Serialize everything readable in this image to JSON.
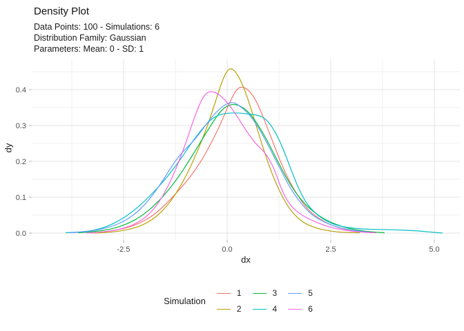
{
  "header": {
    "title": "Density Plot",
    "subtitle_lines": [
      "Data Points: 100 - Simulations: 6",
      "Distribution Family: Gaussian",
      "Parameters: Mean: 0 - SD: 1"
    ]
  },
  "chart_data": {
    "type": "line",
    "title": "Density Plot",
    "subtitle": "Data Points: 100 - Simulations: 6 / Distribution Family: Gaussian / Parameters: Mean: 0 - SD: 1",
    "xlabel": "dx",
    "ylabel": "dy",
    "xlim": [
      -4.7,
      5.6
    ],
    "ylim": [
      -0.019,
      0.485
    ],
    "grid": true,
    "legend_position": "bottom",
    "legend_title": "Simulation",
    "x_ticks": [
      -2.5,
      0.0,
      2.5,
      5.0
    ],
    "x_tick_labels": [
      "-2.5",
      "0.0",
      "2.5",
      "5.0"
    ],
    "y_ticks": [
      0.0,
      0.1,
      0.2,
      0.3,
      0.4
    ],
    "y_tick_labels": [
      "0.0",
      "0.1",
      "0.2",
      "0.3",
      "0.4"
    ],
    "colors": {
      "grid_major": "#e3e3e3",
      "grid_minor": "#efefef",
      "tick_mark": "#b0b0b0",
      "tick_label": "#4d4d4d"
    },
    "series": [
      {
        "name": "1",
        "color": "#F8766D",
        "points": [
          [
            -3.3,
            0.0
          ],
          [
            -3.0,
            0.003
          ],
          [
            -2.7,
            0.008
          ],
          [
            -2.4,
            0.015
          ],
          [
            -2.1,
            0.028
          ],
          [
            -1.8,
            0.048
          ],
          [
            -1.5,
            0.078
          ],
          [
            -1.2,
            0.115
          ],
          [
            -0.9,
            0.155
          ],
          [
            -0.6,
            0.205
          ],
          [
            -0.3,
            0.27
          ],
          [
            -0.1,
            0.32
          ],
          [
            0.1,
            0.375
          ],
          [
            0.25,
            0.405
          ],
          [
            0.4,
            0.408
          ],
          [
            0.55,
            0.395
          ],
          [
            0.7,
            0.37
          ],
          [
            0.9,
            0.315
          ],
          [
            1.1,
            0.255
          ],
          [
            1.3,
            0.195
          ],
          [
            1.5,
            0.145
          ],
          [
            1.7,
            0.105
          ],
          [
            1.9,
            0.072
          ],
          [
            2.1,
            0.05
          ],
          [
            2.4,
            0.028
          ],
          [
            2.7,
            0.014
          ],
          [
            3.0,
            0.007
          ],
          [
            3.3,
            0.003
          ],
          [
            3.5,
            0.001
          ]
        ]
      },
      {
        "name": "2",
        "color": "#B79F00",
        "points": [
          [
            -3.2,
            0.0
          ],
          [
            -2.9,
            0.002
          ],
          [
            -2.6,
            0.005
          ],
          [
            -2.3,
            0.012
          ],
          [
            -2.0,
            0.024
          ],
          [
            -1.7,
            0.046
          ],
          [
            -1.4,
            0.082
          ],
          [
            -1.1,
            0.135
          ],
          [
            -0.8,
            0.205
          ],
          [
            -0.5,
            0.29
          ],
          [
            -0.3,
            0.36
          ],
          [
            -0.1,
            0.432
          ],
          [
            0.05,
            0.462
          ],
          [
            0.2,
            0.452
          ],
          [
            0.35,
            0.42
          ],
          [
            0.5,
            0.375
          ],
          [
            0.7,
            0.3
          ],
          [
            0.9,
            0.225
          ],
          [
            1.1,
            0.16
          ],
          [
            1.3,
            0.108
          ],
          [
            1.5,
            0.068
          ],
          [
            1.7,
            0.042
          ],
          [
            1.9,
            0.025
          ],
          [
            2.2,
            0.012
          ],
          [
            2.5,
            0.005
          ],
          [
            2.8,
            0.002
          ],
          [
            3.2,
            0.001
          ]
        ]
      },
      {
        "name": "3",
        "color": "#00BA38",
        "points": [
          [
            -3.6,
            0.001
          ],
          [
            -3.3,
            0.003
          ],
          [
            -3.0,
            0.007
          ],
          [
            -2.7,
            0.014
          ],
          [
            -2.4,
            0.026
          ],
          [
            -2.1,
            0.045
          ],
          [
            -1.8,
            0.072
          ],
          [
            -1.5,
            0.108
          ],
          [
            -1.2,
            0.152
          ],
          [
            -0.9,
            0.205
          ],
          [
            -0.6,
            0.262
          ],
          [
            -0.3,
            0.318
          ],
          [
            -0.1,
            0.348
          ],
          [
            0.1,
            0.36
          ],
          [
            0.3,
            0.356
          ],
          [
            0.5,
            0.34
          ],
          [
            0.7,
            0.31
          ],
          [
            0.9,
            0.272
          ],
          [
            1.1,
            0.228
          ],
          [
            1.3,
            0.182
          ],
          [
            1.5,
            0.14
          ],
          [
            1.7,
            0.105
          ],
          [
            1.9,
            0.078
          ],
          [
            2.1,
            0.058
          ],
          [
            2.3,
            0.042
          ],
          [
            2.5,
            0.03
          ],
          [
            2.8,
            0.017
          ],
          [
            3.1,
            0.009
          ],
          [
            3.4,
            0.004
          ],
          [
            3.8,
            0.001
          ]
        ]
      },
      {
        "name": "4",
        "color": "#00BFC4",
        "points": [
          [
            -3.9,
            0.001
          ],
          [
            -3.5,
            0.003
          ],
          [
            -3.2,
            0.008
          ],
          [
            -2.9,
            0.018
          ],
          [
            -2.6,
            0.035
          ],
          [
            -2.3,
            0.058
          ],
          [
            -2.0,
            0.088
          ],
          [
            -1.7,
            0.123
          ],
          [
            -1.4,
            0.163
          ],
          [
            -1.1,
            0.21
          ],
          [
            -0.8,
            0.262
          ],
          [
            -0.5,
            0.305
          ],
          [
            -0.3,
            0.325
          ],
          [
            -0.1,
            0.333
          ],
          [
            0.1,
            0.335
          ],
          [
            0.3,
            0.335
          ],
          [
            0.5,
            0.332
          ],
          [
            0.7,
            0.33
          ],
          [
            0.9,
            0.322
          ],
          [
            1.1,
            0.295
          ],
          [
            1.3,
            0.25
          ],
          [
            1.5,
            0.19
          ],
          [
            1.7,
            0.13
          ],
          [
            1.9,
            0.085
          ],
          [
            2.1,
            0.058
          ],
          [
            2.3,
            0.04
          ],
          [
            2.5,
            0.028
          ],
          [
            2.7,
            0.02
          ],
          [
            3.0,
            0.014
          ],
          [
            3.3,
            0.011
          ],
          [
            3.7,
            0.01
          ],
          [
            4.1,
            0.009
          ],
          [
            4.5,
            0.007
          ],
          [
            4.8,
            0.004
          ],
          [
            5.0,
            0.002
          ],
          [
            5.2,
            0.0
          ]
        ]
      },
      {
        "name": "5",
        "color": "#619CFF",
        "points": [
          [
            -3.8,
            0.001
          ],
          [
            -3.4,
            0.004
          ],
          [
            -3.1,
            0.009
          ],
          [
            -2.8,
            0.018
          ],
          [
            -2.5,
            0.032
          ],
          [
            -2.2,
            0.055
          ],
          [
            -1.9,
            0.09
          ],
          [
            -1.6,
            0.138
          ],
          [
            -1.4,
            0.175
          ],
          [
            -1.2,
            0.21
          ],
          [
            -1.0,
            0.235
          ],
          [
            -0.8,
            0.258
          ],
          [
            -0.6,
            0.288
          ],
          [
            -0.4,
            0.32
          ],
          [
            -0.2,
            0.345
          ],
          [
            0.0,
            0.362
          ],
          [
            0.15,
            0.365
          ],
          [
            0.3,
            0.355
          ],
          [
            0.5,
            0.335
          ],
          [
            0.7,
            0.305
          ],
          [
            0.9,
            0.265
          ],
          [
            1.1,
            0.22
          ],
          [
            1.3,
            0.175
          ],
          [
            1.5,
            0.13
          ],
          [
            1.7,
            0.095
          ],
          [
            1.9,
            0.067
          ],
          [
            2.1,
            0.046
          ],
          [
            2.4,
            0.027
          ],
          [
            2.7,
            0.015
          ],
          [
            3.0,
            0.008
          ],
          [
            3.3,
            0.004
          ],
          [
            3.5,
            0.002
          ]
        ]
      },
      {
        "name": "6",
        "color": "#F564E3",
        "points": [
          [
            -3.4,
            0.0
          ],
          [
            -3.1,
            0.002
          ],
          [
            -2.8,
            0.006
          ],
          [
            -2.5,
            0.013
          ],
          [
            -2.2,
            0.026
          ],
          [
            -1.9,
            0.05
          ],
          [
            -1.6,
            0.092
          ],
          [
            -1.3,
            0.16
          ],
          [
            -1.0,
            0.25
          ],
          [
            -0.8,
            0.32
          ],
          [
            -0.6,
            0.378
          ],
          [
            -0.45,
            0.395
          ],
          [
            -0.3,
            0.394
          ],
          [
            -0.1,
            0.378
          ],
          [
            0.1,
            0.35
          ],
          [
            0.3,
            0.315
          ],
          [
            0.5,
            0.278
          ],
          [
            0.7,
            0.248
          ],
          [
            0.85,
            0.232
          ],
          [
            1.0,
            0.21
          ],
          [
            1.15,
            0.175
          ],
          [
            1.3,
            0.125
          ],
          [
            1.45,
            0.09
          ],
          [
            1.6,
            0.068
          ],
          [
            1.8,
            0.05
          ],
          [
            2.0,
            0.038
          ],
          [
            2.3,
            0.023
          ],
          [
            2.6,
            0.013
          ],
          [
            2.9,
            0.007
          ],
          [
            3.2,
            0.003
          ],
          [
            3.6,
            0.001
          ]
        ]
      }
    ]
  }
}
